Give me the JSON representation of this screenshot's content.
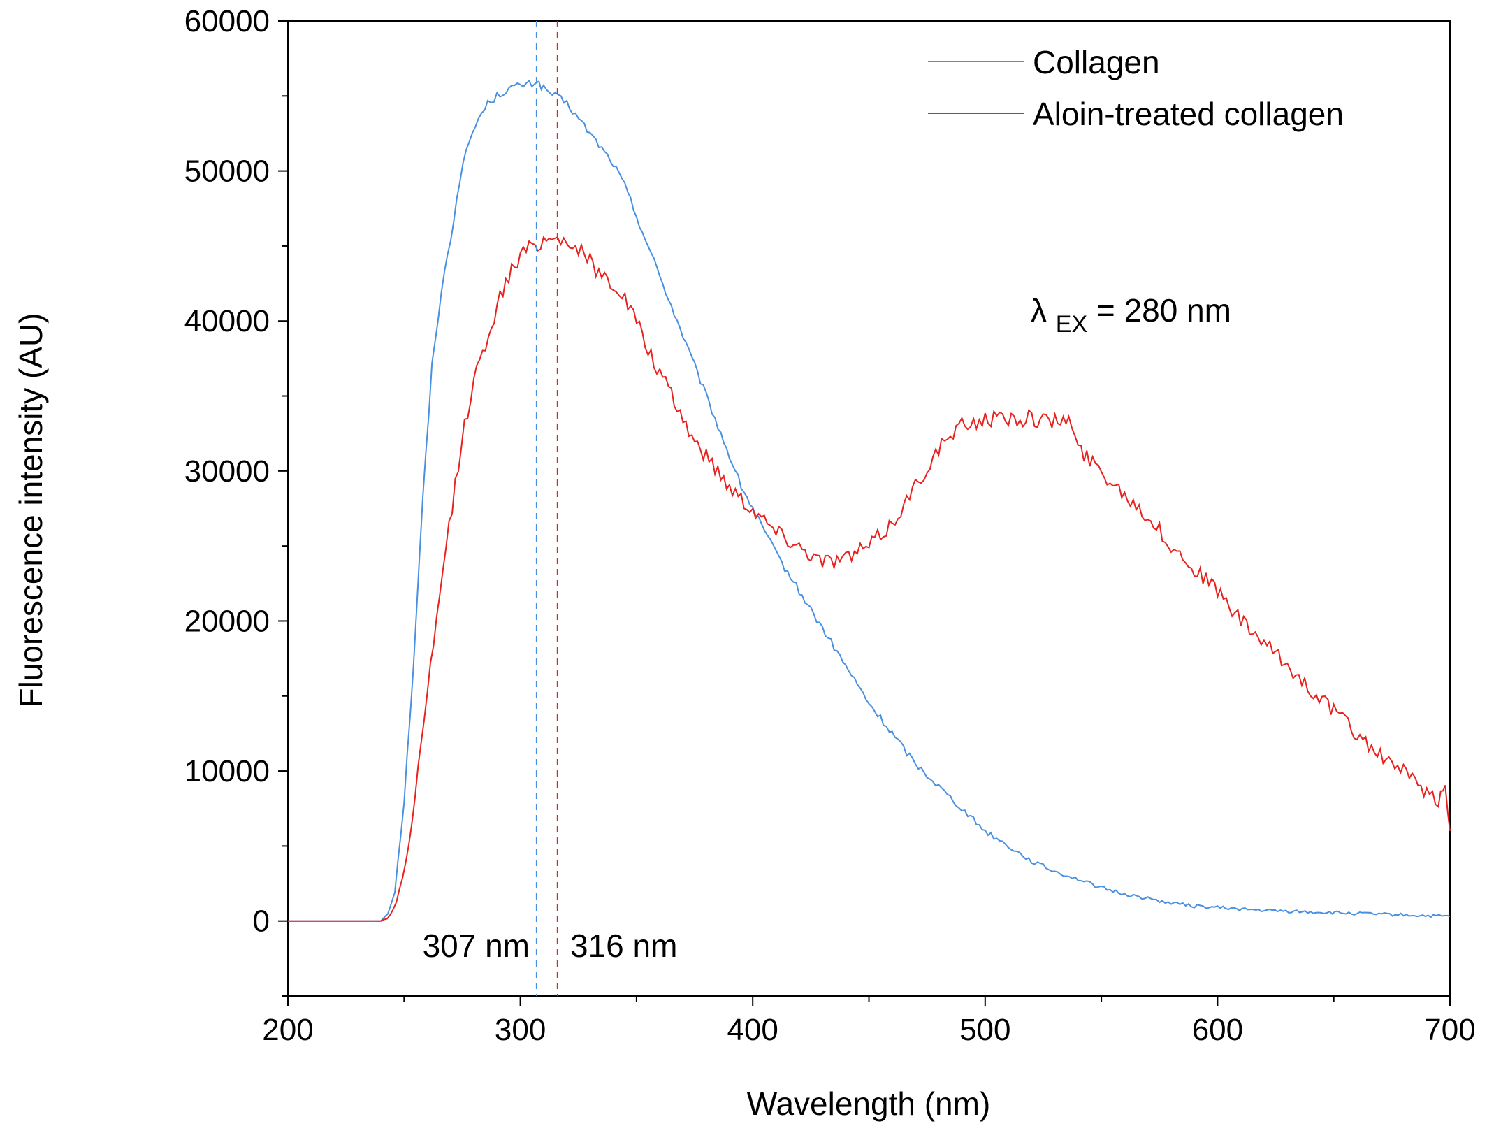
{
  "chart_data": {
    "type": "line",
    "xlabel": "Wavelength (nm)",
    "ylabel": "Fluorescence intensity (AU)",
    "xlim": [
      200,
      700
    ],
    "ylim": [
      -5000,
      60000
    ],
    "x_ticks": [
      200,
      300,
      400,
      500,
      600,
      700
    ],
    "y_ticks": [
      0,
      10000,
      20000,
      30000,
      40000,
      50000,
      60000
    ],
    "grid": false,
    "legend_position": "top-right",
    "series": [
      {
        "name": "Collagen",
        "color": "#4a90e2",
        "points": [
          [
            200,
            0
          ],
          [
            220,
            0
          ],
          [
            240,
            0
          ],
          [
            243,
            500
          ],
          [
            246,
            2000
          ],
          [
            250,
            8000
          ],
          [
            254,
            17000
          ],
          [
            258,
            28000
          ],
          [
            262,
            37000
          ],
          [
            266,
            42000
          ],
          [
            270,
            45500
          ],
          [
            274,
            49500
          ],
          [
            278,
            52000
          ],
          [
            282,
            53500
          ],
          [
            286,
            54500
          ],
          [
            290,
            55000
          ],
          [
            295,
            55500
          ],
          [
            300,
            55700
          ],
          [
            305,
            55800
          ],
          [
            307,
            56000
          ],
          [
            310,
            55500
          ],
          [
            315,
            55000
          ],
          [
            320,
            54500
          ],
          [
            325,
            53500
          ],
          [
            330,
            52500
          ],
          [
            335,
            51500
          ],
          [
            340,
            50500
          ],
          [
            345,
            49000
          ],
          [
            350,
            47000
          ],
          [
            355,
            45000
          ],
          [
            360,
            43000
          ],
          [
            365,
            41000
          ],
          [
            370,
            39000
          ],
          [
            375,
            37000
          ],
          [
            380,
            35000
          ],
          [
            385,
            33000
          ],
          [
            390,
            31000
          ],
          [
            395,
            29000
          ],
          [
            400,
            27500
          ],
          [
            410,
            24500
          ],
          [
            420,
            22000
          ],
          [
            430,
            19500
          ],
          [
            440,
            17000
          ],
          [
            450,
            14500
          ],
          [
            460,
            12500
          ],
          [
            470,
            10500
          ],
          [
            480,
            9000
          ],
          [
            490,
            7500
          ],
          [
            500,
            6000
          ],
          [
            510,
            5000
          ],
          [
            520,
            4000
          ],
          [
            530,
            3300
          ],
          [
            540,
            2800
          ],
          [
            550,
            2200
          ],
          [
            560,
            1800
          ],
          [
            570,
            1500
          ],
          [
            580,
            1200
          ],
          [
            590,
            1000
          ],
          [
            600,
            900
          ],
          [
            620,
            700
          ],
          [
            640,
            600
          ],
          [
            660,
            500
          ],
          [
            680,
            400
          ],
          [
            700,
            300
          ]
        ]
      },
      {
        "name": "Aloin-treated collagen",
        "color": "#e8231f",
        "points": [
          [
            200,
            0
          ],
          [
            220,
            0
          ],
          [
            240,
            0
          ],
          [
            244,
            300
          ],
          [
            248,
            2000
          ],
          [
            252,
            5000
          ],
          [
            256,
            10000
          ],
          [
            260,
            15000
          ],
          [
            264,
            20000
          ],
          [
            268,
            25000
          ],
          [
            272,
            29000
          ],
          [
            276,
            33000
          ],
          [
            280,
            36000
          ],
          [
            285,
            38500
          ],
          [
            290,
            41000
          ],
          [
            295,
            43000
          ],
          [
            300,
            44300
          ],
          [
            305,
            45000
          ],
          [
            310,
            45400
          ],
          [
            316,
            45600
          ],
          [
            320,
            45300
          ],
          [
            325,
            44800
          ],
          [
            330,
            44000
          ],
          [
            335,
            43000
          ],
          [
            340,
            42500
          ],
          [
            345,
            41500
          ],
          [
            350,
            40000
          ],
          [
            355,
            38000
          ],
          [
            360,
            36500
          ],
          [
            365,
            35000
          ],
          [
            370,
            33500
          ],
          [
            375,
            32000
          ],
          [
            380,
            31000
          ],
          [
            385,
            30000
          ],
          [
            390,
            29000
          ],
          [
            395,
            28200
          ],
          [
            400,
            27500
          ],
          [
            410,
            26000
          ],
          [
            420,
            25000
          ],
          [
            430,
            24000
          ],
          [
            440,
            24200
          ],
          [
            450,
            25000
          ],
          [
            460,
            26500
          ],
          [
            470,
            29000
          ],
          [
            480,
            31500
          ],
          [
            490,
            33000
          ],
          [
            500,
            33500
          ],
          [
            510,
            33500
          ],
          [
            520,
            33500
          ],
          [
            530,
            33300
          ],
          [
            536,
            33500
          ],
          [
            540,
            31500
          ],
          [
            550,
            30000
          ],
          [
            560,
            28500
          ],
          [
            570,
            27000
          ],
          [
            580,
            25000
          ],
          [
            590,
            23500
          ],
          [
            600,
            22000
          ],
          [
            610,
            20000
          ],
          [
            620,
            18500
          ],
          [
            630,
            17000
          ],
          [
            640,
            15500
          ],
          [
            650,
            14000
          ],
          [
            660,
            12500
          ],
          [
            670,
            11000
          ],
          [
            680,
            10000
          ],
          [
            690,
            8500
          ],
          [
            695,
            8000
          ],
          [
            698,
            9000
          ],
          [
            700,
            6000
          ]
        ]
      }
    ],
    "vlines": [
      {
        "x": 307,
        "color": "#4a90e2",
        "label": "307 nm"
      },
      {
        "x": 316,
        "color": "#e8231f",
        "label": "316 nm"
      }
    ],
    "annotation": {
      "lambda": "λ",
      "subscript": "EX",
      "text": " = 280 nm"
    }
  }
}
